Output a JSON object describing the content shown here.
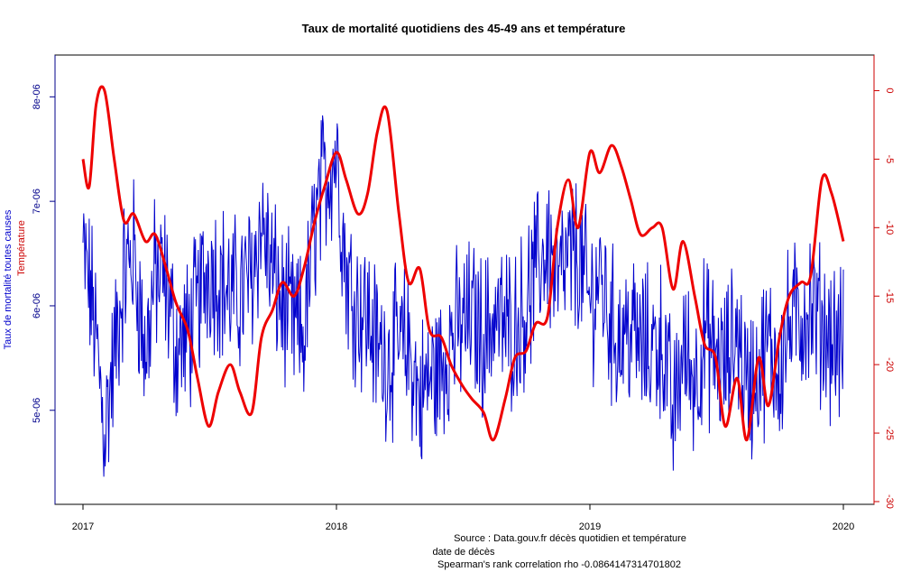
{
  "chart_data": {
    "type": "line",
    "title": "Taux de mortalité quotidiens des 45-49 ans et température",
    "xlabel": "date de décès",
    "ylabel_left": "Taux de mortalité toutes causes",
    "ylabel_right": "Température",
    "source": "Source : Data.gouv.fr décès quotidien et température",
    "correlation": "Spearman's rank correlation rho -0.0864147314701802",
    "x_range": [
      "2017-01-01",
      "2020-01-01"
    ],
    "x_ticks": [
      {
        "date": "2017-01-01",
        "label": "2017"
      },
      {
        "date": "2018-01-01",
        "label": "2018"
      },
      {
        "date": "2019-01-01",
        "label": "2019"
      },
      {
        "date": "2020-01-01",
        "label": "2020"
      }
    ],
    "y_left": {
      "range": [
        4.1e-06,
        8.4e-06
      ],
      "ticks": [
        {
          "value": 5e-06,
          "label": "5e-06"
        },
        {
          "value": 6e-06,
          "label": "6e-06"
        },
        {
          "value": 7e-06,
          "label": "7e-06"
        },
        {
          "value": 8e-06,
          "label": "8e-06"
        }
      ]
    },
    "y_right": {
      "range": [
        -30.2,
        2.6
      ],
      "ticks": [
        {
          "value": 0,
          "label": "0"
        },
        {
          "value": -5,
          "label": "-5"
        },
        {
          "value": -10,
          "label": "-10"
        },
        {
          "value": -15,
          "label": "-15"
        },
        {
          "value": -20,
          "label": "-20"
        },
        {
          "value": -25,
          "label": "-25"
        },
        {
          "value": -30,
          "label": "-30"
        }
      ]
    },
    "series": [
      {
        "axis": "left",
        "color": "#0000cd",
        "width": 1,
        "points": [
          [
            "2017-01-01",
            6.5e-06
          ],
          [
            "2017-01-15",
            6e-06
          ],
          [
            "2017-02-01",
            4.8e-06
          ],
          [
            "2017-02-15",
            5.5e-06
          ],
          [
            "2017-03-01",
            6.3e-06
          ],
          [
            "2017-03-15",
            6.5e-06
          ],
          [
            "2017-04-01",
            5.5e-06
          ],
          [
            "2017-04-15",
            6.3e-06
          ],
          [
            "2017-05-01",
            6.2e-06
          ],
          [
            "2017-05-15",
            5.6e-06
          ],
          [
            "2017-06-01",
            5.7e-06
          ],
          [
            "2017-06-15",
            6e-06
          ],
          [
            "2017-07-01",
            6.4e-06
          ],
          [
            "2017-07-15",
            6.3e-06
          ],
          [
            "2017-08-01",
            6.1e-06
          ],
          [
            "2017-08-15",
            6.1e-06
          ],
          [
            "2017-09-01",
            6.3e-06
          ],
          [
            "2017-09-15",
            6.8e-06
          ],
          [
            "2017-10-01",
            6.3e-06
          ],
          [
            "2017-10-15",
            6e-06
          ],
          [
            "2017-11-01",
            5.8e-06
          ],
          [
            "2017-11-15",
            5.7e-06
          ],
          [
            "2017-12-01",
            6.8e-06
          ],
          [
            "2017-12-15",
            7.2e-06
          ],
          [
            "2018-01-01",
            7.5e-06
          ],
          [
            "2018-01-15",
            6.3e-06
          ],
          [
            "2018-02-01",
            6e-06
          ],
          [
            "2018-02-15",
            5.9e-06
          ],
          [
            "2018-03-01",
            5.6e-06
          ],
          [
            "2018-03-15",
            5.5e-06
          ],
          [
            "2018-04-01",
            5.6e-06
          ],
          [
            "2018-04-15",
            5.6e-06
          ],
          [
            "2018-05-01",
            5.1e-06
          ],
          [
            "2018-05-15",
            5.3e-06
          ],
          [
            "2018-06-01",
            5.4e-06
          ],
          [
            "2018-06-15",
            5.7e-06
          ],
          [
            "2018-07-01",
            5.8e-06
          ],
          [
            "2018-07-15",
            5.9e-06
          ],
          [
            "2018-08-01",
            5.7e-06
          ],
          [
            "2018-08-15",
            5.9e-06
          ],
          [
            "2018-09-01",
            5.8e-06
          ],
          [
            "2018-09-15",
            5.8e-06
          ],
          [
            "2018-10-01",
            6e-06
          ],
          [
            "2018-10-15",
            6.3e-06
          ],
          [
            "2018-11-01",
            6.6e-06
          ],
          [
            "2018-11-15",
            6.2e-06
          ],
          [
            "2018-12-01",
            6.4e-06
          ],
          [
            "2018-12-15",
            6.5e-06
          ],
          [
            "2019-01-01",
            6e-06
          ],
          [
            "2019-01-15",
            6.3e-06
          ],
          [
            "2019-02-01",
            5.8e-06
          ],
          [
            "2019-02-15",
            5.7e-06
          ],
          [
            "2019-03-01",
            5.8e-06
          ],
          [
            "2019-03-15",
            5.6e-06
          ],
          [
            "2019-04-01",
            5.6e-06
          ],
          [
            "2019-04-15",
            5.7e-06
          ],
          [
            "2019-05-01",
            4.9e-06
          ],
          [
            "2019-05-15",
            5.6e-06
          ],
          [
            "2019-06-01",
            5.3e-06
          ],
          [
            "2019-06-15",
            5.7e-06
          ],
          [
            "2019-07-01",
            5.5e-06
          ],
          [
            "2019-07-15",
            5.4e-06
          ],
          [
            "2019-08-01",
            5.8e-06
          ],
          [
            "2019-08-15",
            5.2e-06
          ],
          [
            "2019-09-01",
            5.4e-06
          ],
          [
            "2019-09-15",
            5.6e-06
          ],
          [
            "2019-10-01",
            5.4e-06
          ],
          [
            "2019-10-15",
            5.8e-06
          ],
          [
            "2019-11-01",
            5.9e-06
          ],
          [
            "2019-11-15",
            6e-06
          ],
          [
            "2019-12-01",
            5.8e-06
          ],
          [
            "2019-12-15",
            5.7e-06
          ],
          [
            "2020-01-01",
            5.6e-06
          ]
        ]
      },
      {
        "axis": "right",
        "color": "#ee0000",
        "width": 3,
        "points": [
          [
            "2017-01-01",
            -5.0
          ],
          [
            "2017-01-10",
            -7.0
          ],
          [
            "2017-01-20",
            -1.0
          ],
          [
            "2017-02-01",
            0.0
          ],
          [
            "2017-02-15",
            -5.0
          ],
          [
            "2017-03-01",
            -9.5
          ],
          [
            "2017-03-15",
            -9.0
          ],
          [
            "2017-04-01",
            -11.0
          ],
          [
            "2017-04-15",
            -10.5
          ],
          [
            "2017-05-01",
            -13.0
          ],
          [
            "2017-05-15",
            -15.5
          ],
          [
            "2017-06-01",
            -17.5
          ],
          [
            "2017-06-15",
            -21.0
          ],
          [
            "2017-07-01",
            -24.5
          ],
          [
            "2017-07-15",
            -22.0
          ],
          [
            "2017-08-01",
            -20.0
          ],
          [
            "2017-08-15",
            -22.0
          ],
          [
            "2017-09-01",
            -23.5
          ],
          [
            "2017-09-15",
            -18.0
          ],
          [
            "2017-10-01",
            -16.0
          ],
          [
            "2017-10-15",
            -14.0
          ],
          [
            "2017-11-01",
            -15.0
          ],
          [
            "2017-11-15",
            -13.0
          ],
          [
            "2017-12-01",
            -9.5
          ],
          [
            "2017-12-15",
            -7.0
          ],
          [
            "2018-01-01",
            -4.5
          ],
          [
            "2018-01-15",
            -6.5
          ],
          [
            "2018-02-01",
            -9.0
          ],
          [
            "2018-02-15",
            -7.5
          ],
          [
            "2018-03-01",
            -3.0
          ],
          [
            "2018-03-15",
            -1.5
          ],
          [
            "2018-04-01",
            -9.0
          ],
          [
            "2018-04-15",
            -14.0
          ],
          [
            "2018-05-01",
            -13.0
          ],
          [
            "2018-05-15",
            -17.5
          ],
          [
            "2018-06-01",
            -18.0
          ],
          [
            "2018-06-15",
            -20.0
          ],
          [
            "2018-07-01",
            -21.5
          ],
          [
            "2018-07-15",
            -22.5
          ],
          [
            "2018-08-01",
            -23.5
          ],
          [
            "2018-08-15",
            -25.5
          ],
          [
            "2018-09-01",
            -22.5
          ],
          [
            "2018-09-15",
            -19.5
          ],
          [
            "2018-10-01",
            -19.0
          ],
          [
            "2018-10-15",
            -17.0
          ],
          [
            "2018-11-01",
            -16.5
          ],
          [
            "2018-11-15",
            -10.0
          ],
          [
            "2018-12-01",
            -6.5
          ],
          [
            "2018-12-15",
            -10.0
          ],
          [
            "2019-01-01",
            -4.5
          ],
          [
            "2019-01-15",
            -6.0
          ],
          [
            "2019-02-01",
            -4.0
          ],
          [
            "2019-02-15",
            -5.5
          ],
          [
            "2019-03-01",
            -8.0
          ],
          [
            "2019-03-15",
            -10.5
          ],
          [
            "2019-04-01",
            -10.0
          ],
          [
            "2019-04-15",
            -10.0
          ],
          [
            "2019-05-01",
            -14.5
          ],
          [
            "2019-05-15",
            -11.0
          ],
          [
            "2019-06-01",
            -15.0
          ],
          [
            "2019-06-15",
            -18.5
          ],
          [
            "2019-07-01",
            -19.5
          ],
          [
            "2019-07-15",
            -24.5
          ],
          [
            "2019-08-01",
            -21.0
          ],
          [
            "2019-08-15",
            -25.5
          ],
          [
            "2019-09-01",
            -19.5
          ],
          [
            "2019-09-15",
            -23.0
          ],
          [
            "2019-10-01",
            -18.0
          ],
          [
            "2019-10-15",
            -15.0
          ],
          [
            "2019-11-01",
            -14.0
          ],
          [
            "2019-11-15",
            -13.5
          ],
          [
            "2019-12-01",
            -6.5
          ],
          [
            "2019-12-15",
            -7.5
          ],
          [
            "2020-01-01",
            -11.0
          ]
        ]
      }
    ],
    "grid": false,
    "legend": "none"
  }
}
